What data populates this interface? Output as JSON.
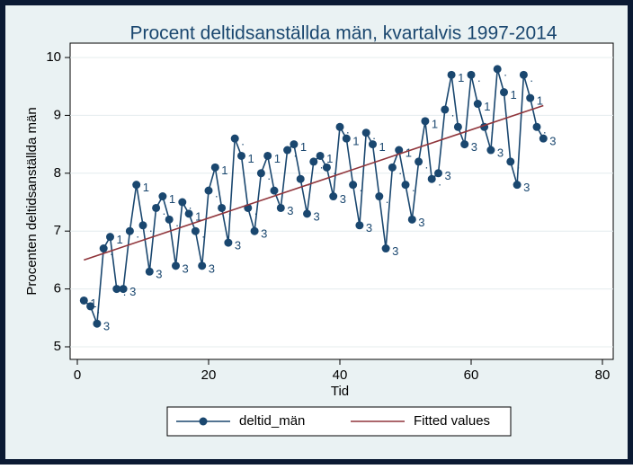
{
  "chart_data": {
    "type": "line",
    "title": "Procent deltidsanställda män, kvartalvis 1997-2014",
    "x_label": "Tid",
    "y_label": "Procenten deltidsanställda män",
    "xlim": [
      0,
      80
    ],
    "xticks": [
      0,
      20,
      40,
      60,
      80
    ],
    "ylim": [
      5,
      10
    ],
    "yticks": [
      5,
      6,
      7,
      8,
      9,
      10
    ],
    "grid": true,
    "legend": "bottom",
    "series": [
      {
        "name": "deltid_män",
        "color": "#1a476f",
        "markers": true,
        "x": [
          1,
          2,
          3,
          4,
          5,
          6,
          7,
          8,
          9,
          10,
          11,
          12,
          13,
          14,
          15,
          16,
          17,
          18,
          19,
          20,
          21,
          22,
          23,
          24,
          25,
          26,
          27,
          28,
          29,
          30,
          31,
          32,
          33,
          34,
          35,
          36,
          37,
          38,
          39,
          40,
          41,
          42,
          43,
          44,
          45,
          46,
          47,
          48,
          49,
          50,
          51,
          52,
          53,
          54,
          55,
          56,
          57,
          58,
          59,
          60,
          61,
          62,
          63,
          64,
          65,
          66,
          67,
          68,
          69,
          70,
          71
        ],
        "values": [
          5.8,
          5.7,
          5.4,
          6.7,
          6.9,
          6.0,
          6.0,
          7.0,
          7.8,
          7.1,
          6.3,
          7.4,
          7.6,
          7.2,
          6.4,
          7.5,
          7.3,
          7.0,
          6.4,
          7.7,
          8.1,
          7.4,
          6.8,
          8.6,
          8.3,
          7.4,
          7.0,
          8.0,
          8.3,
          7.7,
          7.4,
          8.4,
          8.5,
          7.9,
          7.3,
          8.2,
          8.3,
          8.1,
          7.6,
          8.8,
          8.6,
          7.8,
          7.1,
          8.7,
          8.5,
          7.6,
          6.7,
          8.1,
          8.4,
          7.8,
          7.2,
          8.2,
          8.9,
          7.9,
          8.0,
          9.1,
          9.7,
          8.8,
          8.5,
          9.7,
          9.2,
          8.8,
          8.4,
          9.8,
          9.4,
          8.2,
          7.8,
          9.7,
          9.3,
          8.8,
          8.6
        ],
        "point_labels": [
          "1",
          ".",
          "3",
          ".",
          "1",
          ".",
          "3",
          ".",
          "1",
          ".",
          "3",
          ".",
          "1",
          ".",
          "3",
          ".",
          "1",
          ".",
          "3",
          ".",
          "1",
          ".",
          "3",
          ".",
          "1",
          ".",
          "3",
          ".",
          "1",
          ".",
          "3",
          ".",
          "1",
          ".",
          "3",
          ".",
          "1",
          ".",
          "3",
          ".",
          "1",
          ".",
          "3",
          ".",
          "1",
          ".",
          "3",
          ".",
          "1",
          ".",
          "3",
          ".",
          "1",
          ".",
          "3",
          ".",
          "1",
          ".",
          "3",
          ".",
          "1",
          ".",
          "3",
          ".",
          "1",
          ".",
          "3",
          ".",
          "1",
          ".",
          "3"
        ]
      },
      {
        "name": "Fitted values",
        "color": "#90353b",
        "markers": false,
        "x": [
          1,
          71
        ],
        "values": [
          6.5,
          9.17
        ]
      }
    ]
  }
}
